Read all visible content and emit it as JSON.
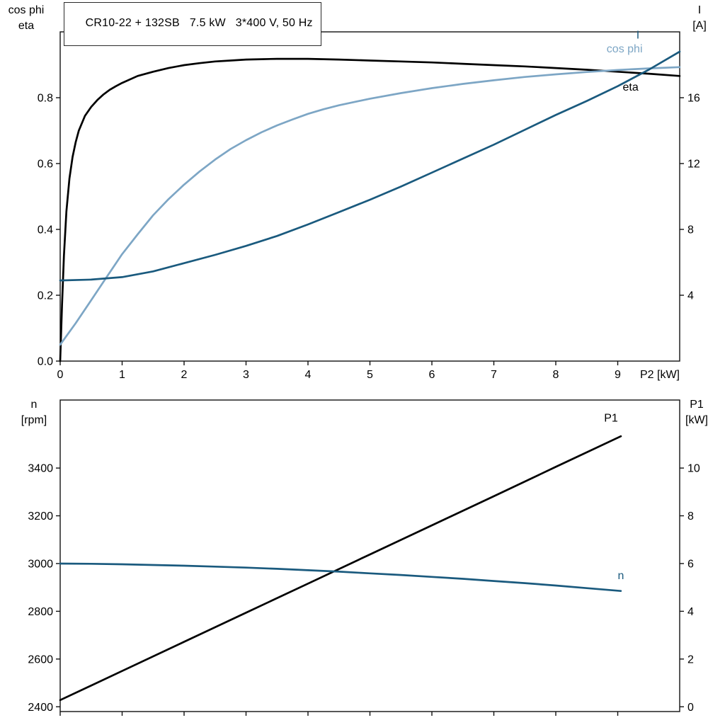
{
  "page": {
    "background": "#ffffff"
  },
  "colors": {
    "frame": "#111111",
    "eta": "#000000",
    "cos_phi": "#7da6c5",
    "current": "#1a5a7e",
    "p1": "#000000",
    "speed": "#1a5a7e"
  },
  "chart_data": [
    {
      "type": "line",
      "title": "CR10-22 + 132SB   7.5 kW   3*400 V, 50 Hz",
      "grid": false,
      "legend_position": "curve-end-labels",
      "corner_labels": {
        "left": [
          "cos phi",
          "eta"
        ],
        "right": [
          "I",
          "[A]"
        ]
      },
      "x_axis": {
        "label": "P2 [kW]",
        "range": [
          0,
          10
        ],
        "ticks": [
          {
            "v": 0,
            "label": "0"
          },
          {
            "v": 1,
            "label": "1"
          },
          {
            "v": 2,
            "label": "2"
          },
          {
            "v": 3,
            "label": "3"
          },
          {
            "v": 4,
            "label": "4"
          },
          {
            "v": 5,
            "label": "5"
          },
          {
            "v": 6,
            "label": "6"
          },
          {
            "v": 7,
            "label": "7"
          },
          {
            "v": 8,
            "label": "8"
          },
          {
            "v": 9,
            "label": "9"
          }
        ]
      },
      "y_left": {
        "label": "cos phi / eta",
        "range": [
          0,
          1.0
        ],
        "ticks": [
          {
            "v": 0,
            "label": "0.0"
          },
          {
            "v": 0.2,
            "label": "0.2"
          },
          {
            "v": 0.4,
            "label": "0.4"
          },
          {
            "v": 0.6,
            "label": "0.6"
          },
          {
            "v": 0.8,
            "label": "0.8"
          }
        ]
      },
      "y_right": {
        "label": "I [A]",
        "range": [
          0,
          20
        ],
        "ticks": [
          {
            "v": 4,
            "label": "4"
          },
          {
            "v": 8,
            "label": "8"
          },
          {
            "v": 12,
            "label": "12"
          },
          {
            "v": 16,
            "label": "16"
          }
        ]
      },
      "series": [
        {
          "name": "eta",
          "axis": "left",
          "color": "#000000",
          "label_at": [
            9.08,
            0.822
          ],
          "points": [
            [
              0,
              0
            ],
            [
              0.03,
              0.17
            ],
            [
              0.06,
              0.32
            ],
            [
              0.1,
              0.455
            ],
            [
              0.15,
              0.555
            ],
            [
              0.2,
              0.62
            ],
            [
              0.25,
              0.665
            ],
            [
              0.3,
              0.7
            ],
            [
              0.4,
              0.745
            ],
            [
              0.5,
              0.772
            ],
            [
              0.6,
              0.793
            ],
            [
              0.7,
              0.81
            ],
            [
              0.8,
              0.824
            ],
            [
              0.9,
              0.835
            ],
            [
              1,
              0.845
            ],
            [
              1.25,
              0.866
            ],
            [
              1.5,
              0.879
            ],
            [
              1.75,
              0.89
            ],
            [
              2,
              0.899
            ],
            [
              2.25,
              0.905
            ],
            [
              2.5,
              0.91
            ],
            [
              2.75,
              0.913
            ],
            [
              3,
              0.916
            ],
            [
              3.25,
              0.917
            ],
            [
              3.5,
              0.918
            ],
            [
              3.75,
              0.918
            ],
            [
              4,
              0.918
            ],
            [
              4.5,
              0.916
            ],
            [
              5,
              0.913
            ],
            [
              5.5,
              0.91
            ],
            [
              6,
              0.907
            ],
            [
              6.5,
              0.903
            ],
            [
              7,
              0.899
            ],
            [
              7.5,
              0.895
            ],
            [
              8,
              0.89
            ],
            [
              8.5,
              0.885
            ],
            [
              9,
              0.879
            ],
            [
              9.5,
              0.873
            ],
            [
              10,
              0.866
            ]
          ]
        },
        {
          "name": "cos phi",
          "axis": "left",
          "color": "#7da6c5",
          "label_at": [
            8.82,
            0.938
          ],
          "points": [
            [
              0,
              0.05
            ],
            [
              0.25,
              0.115
            ],
            [
              0.5,
              0.185
            ],
            [
              0.75,
              0.255
            ],
            [
              1,
              0.325
            ],
            [
              1.25,
              0.385
            ],
            [
              1.5,
              0.443
            ],
            [
              1.75,
              0.492
            ],
            [
              2,
              0.536
            ],
            [
              2.25,
              0.576
            ],
            [
              2.5,
              0.612
            ],
            [
              2.75,
              0.644
            ],
            [
              3,
              0.671
            ],
            [
              3.25,
              0.695
            ],
            [
              3.5,
              0.716
            ],
            [
              3.75,
              0.734
            ],
            [
              4,
              0.751
            ],
            [
              4.25,
              0.765
            ],
            [
              4.5,
              0.777
            ],
            [
              5,
              0.797
            ],
            [
              5.5,
              0.814
            ],
            [
              6,
              0.829
            ],
            [
              6.5,
              0.842
            ],
            [
              7,
              0.853
            ],
            [
              7.5,
              0.863
            ],
            [
              8,
              0.871
            ],
            [
              8.5,
              0.878
            ],
            [
              9,
              0.884
            ],
            [
              9.5,
              0.889
            ],
            [
              10,
              0.893
            ]
          ]
        },
        {
          "name": "I",
          "axis": "right",
          "color": "#1a5a7e",
          "label_at": [
            9.3,
            19.6
          ],
          "points": [
            [
              0,
              4.9
            ],
            [
              0.5,
              4.95
            ],
            [
              1,
              5.1
            ],
            [
              1.5,
              5.45
            ],
            [
              2,
              5.95
            ],
            [
              2.5,
              6.45
            ],
            [
              3,
              7.0
            ],
            [
              3.5,
              7.6
            ],
            [
              4,
              8.3
            ],
            [
              4.5,
              9.05
            ],
            [
              5,
              9.8
            ],
            [
              5.5,
              10.6
            ],
            [
              6,
              11.45
            ],
            [
              6.5,
              12.3
            ],
            [
              7,
              13.15
            ],
            [
              7.5,
              14.05
            ],
            [
              8,
              14.95
            ],
            [
              8.5,
              15.8
            ],
            [
              9,
              16.7
            ],
            [
              9.5,
              17.7
            ],
            [
              10,
              18.8
            ]
          ]
        }
      ]
    },
    {
      "type": "line",
      "title": "",
      "grid": false,
      "legend_position": "curve-end-labels",
      "corner_labels": {
        "left": [
          "n",
          "[rpm]"
        ],
        "right": [
          "P1",
          "[kW]"
        ]
      },
      "x_axis": {
        "label": "",
        "range": [
          0,
          10
        ],
        "ticks": [
          {
            "v": 0
          },
          {
            "v": 1
          },
          {
            "v": 2
          },
          {
            "v": 3
          },
          {
            "v": 4
          },
          {
            "v": 5
          },
          {
            "v": 6
          },
          {
            "v": 7
          },
          {
            "v": 8
          },
          {
            "v": 9
          }
        ]
      },
      "y_left": {
        "label": "n [rpm]",
        "range": [
          2380,
          3685
        ],
        "ticks": [
          {
            "v": 2400,
            "label": "2400"
          },
          {
            "v": 2600,
            "label": "2600"
          },
          {
            "v": 2800,
            "label": "2800"
          },
          {
            "v": 3000,
            "label": "3000"
          },
          {
            "v": 3200,
            "label": "3200"
          },
          {
            "v": 3400,
            "label": "3400"
          }
        ]
      },
      "y_right": {
        "label": "P1 [kW]",
        "range": [
          -0.2,
          12.85
        ],
        "ticks": [
          {
            "v": 0,
            "label": "0"
          },
          {
            "v": 2,
            "label": "2"
          },
          {
            "v": 4,
            "label": "4"
          },
          {
            "v": 6,
            "label": "6"
          },
          {
            "v": 8,
            "label": "8"
          },
          {
            "v": 10,
            "label": "10"
          }
        ]
      },
      "series": [
        {
          "name": "P1",
          "axis": "right",
          "color": "#000000",
          "label_at": [
            8.78,
            11.95
          ],
          "points": [
            [
              0,
              0.28
            ],
            [
              1,
              1.5
            ],
            [
              2,
              2.72
            ],
            [
              3,
              3.94
            ],
            [
              4,
              5.16
            ],
            [
              5,
              6.38
            ],
            [
              6,
              7.6
            ],
            [
              7,
              8.82
            ],
            [
              8,
              10.05
            ],
            [
              9.05,
              11.33
            ]
          ]
        },
        {
          "name": "n",
          "axis": "left",
          "color": "#1a5a7e",
          "label_at": [
            9.0,
            2935
          ],
          "points": [
            [
              0,
              3000
            ],
            [
              0.5,
              2999
            ],
            [
              1,
              2997
            ],
            [
              1.5,
              2994
            ],
            [
              2,
              2991
            ],
            [
              2.5,
              2987
            ],
            [
              3,
              2983
            ],
            [
              3.5,
              2978
            ],
            [
              4,
              2972
            ],
            [
              4.5,
              2966
            ],
            [
              5,
              2959
            ],
            [
              5.5,
              2952
            ],
            [
              6,
              2944
            ],
            [
              6.5,
              2936
            ],
            [
              7,
              2927
            ],
            [
              7.5,
              2918
            ],
            [
              8,
              2908
            ],
            [
              8.5,
              2897
            ],
            [
              9.05,
              2885
            ]
          ]
        }
      ]
    }
  ]
}
